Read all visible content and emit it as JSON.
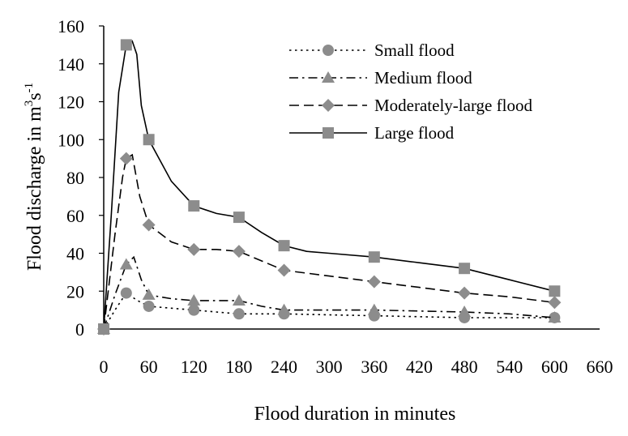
{
  "chart_data": {
    "type": "line",
    "title": "",
    "xlabel": "Flood duration in minutes",
    "ylabel": {
      "base": "Flood discharge in m",
      "sup1": "3",
      "mid": "s",
      "sup2": "-1"
    },
    "xlim": [
      0,
      660
    ],
    "ylim": [
      0,
      160
    ],
    "x_ticks": [
      0,
      60,
      120,
      180,
      240,
      300,
      360,
      420,
      480,
      540,
      600,
      660
    ],
    "y_ticks": [
      0,
      20,
      40,
      60,
      80,
      100,
      120,
      140,
      160
    ],
    "grid": false,
    "legend_position": "top-right",
    "series": [
      {
        "name": "Small flood",
        "line": "dotted",
        "marker": "circle",
        "color": "#8c8c8c",
        "markers": [
          [
            0,
            0
          ],
          [
            30,
            19
          ],
          [
            60,
            12
          ],
          [
            120,
            10
          ],
          [
            180,
            8
          ],
          [
            240,
            8
          ],
          [
            360,
            7
          ],
          [
            480,
            6
          ],
          [
            600,
            6
          ]
        ],
        "curve": [
          [
            0,
            0
          ],
          [
            15,
            10
          ],
          [
            30,
            19
          ],
          [
            45,
            15
          ],
          [
            60,
            12
          ],
          [
            90,
            11
          ],
          [
            120,
            10
          ],
          [
            150,
            9
          ],
          [
            180,
            8
          ],
          [
            240,
            8
          ],
          [
            300,
            7.5
          ],
          [
            360,
            7
          ],
          [
            420,
            6.5
          ],
          [
            480,
            6
          ],
          [
            540,
            6
          ],
          [
            600,
            6
          ]
        ]
      },
      {
        "name": "Medium flood",
        "line": "dash-dot",
        "marker": "triangle",
        "color": "#8c8c8c",
        "markers": [
          [
            0,
            0
          ],
          [
            30,
            34
          ],
          [
            60,
            18
          ],
          [
            120,
            15
          ],
          [
            180,
            15
          ],
          [
            240,
            10
          ],
          [
            360,
            10
          ],
          [
            480,
            9
          ],
          [
            600,
            6
          ]
        ],
        "curve": [
          [
            0,
            0
          ],
          [
            15,
            18
          ],
          [
            30,
            34
          ],
          [
            40,
            38
          ],
          [
            50,
            26
          ],
          [
            60,
            18
          ],
          [
            90,
            16
          ],
          [
            120,
            15
          ],
          [
            180,
            15
          ],
          [
            210,
            12
          ],
          [
            240,
            10
          ],
          [
            300,
            10
          ],
          [
            360,
            10
          ],
          [
            420,
            9.5
          ],
          [
            480,
            9
          ],
          [
            540,
            8
          ],
          [
            600,
            6
          ]
        ]
      },
      {
        "name": "Moderately-large flood",
        "line": "dashed",
        "marker": "diamond",
        "color": "#8c8c8c",
        "markers": [
          [
            0,
            0
          ],
          [
            30,
            90
          ],
          [
            60,
            55
          ],
          [
            120,
            42
          ],
          [
            180,
            41
          ],
          [
            240,
            31
          ],
          [
            360,
            25
          ],
          [
            480,
            19
          ],
          [
            600,
            14
          ]
        ],
        "curve": [
          [
            0,
            0
          ],
          [
            15,
            50
          ],
          [
            25,
            80
          ],
          [
            30,
            90
          ],
          [
            38,
            92
          ],
          [
            48,
            70
          ],
          [
            60,
            55
          ],
          [
            90,
            46
          ],
          [
            120,
            42
          ],
          [
            150,
            42
          ],
          [
            180,
            41
          ],
          [
            210,
            36
          ],
          [
            240,
            31
          ],
          [
            300,
            28
          ],
          [
            360,
            25
          ],
          [
            420,
            22
          ],
          [
            480,
            19
          ],
          [
            540,
            17
          ],
          [
            600,
            14
          ]
        ]
      },
      {
        "name": "Large flood",
        "line": "solid",
        "marker": "square",
        "color": "#8c8c8c",
        "markers": [
          [
            0,
            0
          ],
          [
            30,
            150
          ],
          [
            60,
            100
          ],
          [
            120,
            65
          ],
          [
            180,
            59
          ],
          [
            240,
            44
          ],
          [
            360,
            38
          ],
          [
            480,
            32
          ],
          [
            600,
            20
          ]
        ],
        "curve": [
          [
            0,
            0
          ],
          [
            10,
            60
          ],
          [
            20,
            125
          ],
          [
            30,
            150
          ],
          [
            38,
            152
          ],
          [
            44,
            145
          ],
          [
            50,
            118
          ],
          [
            60,
            100
          ],
          [
            90,
            78
          ],
          [
            120,
            65
          ],
          [
            150,
            61
          ],
          [
            180,
            59
          ],
          [
            210,
            51
          ],
          [
            240,
            44
          ],
          [
            270,
            41
          ],
          [
            300,
            40
          ],
          [
            360,
            38
          ],
          [
            420,
            35
          ],
          [
            480,
            32
          ],
          [
            540,
            26
          ],
          [
            600,
            20
          ]
        ]
      }
    ]
  }
}
